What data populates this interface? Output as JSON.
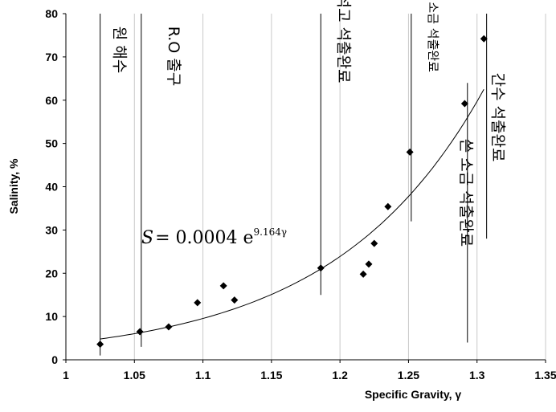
{
  "chart_data": {
    "type": "scatter",
    "xlabel": "Specific Gravity, γ",
    "ylabel": "Salinity, %",
    "xlim": [
      1,
      1.35
    ],
    "ylim": [
      0,
      80
    ],
    "xticks": [
      "1",
      "1.05",
      "1.1",
      "1.15",
      "1.2",
      "1.25",
      "1.3",
      "1.35"
    ],
    "yticks": [
      "0",
      "10",
      "20",
      "30",
      "40",
      "50",
      "60",
      "70",
      "80"
    ],
    "grid": "vertical",
    "points": [
      {
        "x": 1.025,
        "y": 3.6
      },
      {
        "x": 1.054,
        "y": 6.5
      },
      {
        "x": 1.075,
        "y": 7.6
      },
      {
        "x": 1.096,
        "y": 13.2
      },
      {
        "x": 1.115,
        "y": 17.1
      },
      {
        "x": 1.123,
        "y": 13.8
      },
      {
        "x": 1.186,
        "y": 21.2
      },
      {
        "x": 1.217,
        "y": 19.8
      },
      {
        "x": 1.221,
        "y": 22.1
      },
      {
        "x": 1.225,
        "y": 26.9
      },
      {
        "x": 1.235,
        "y": 35.4
      },
      {
        "x": 1.251,
        "y": 48.0
      },
      {
        "x": 1.291,
        "y": 59.2
      },
      {
        "x": 1.305,
        "y": 74.2
      }
    ],
    "trendline": {
      "type": "exponential",
      "a": 0.0004,
      "b": 9.164,
      "x_range": [
        1.025,
        1.305
      ]
    },
    "equation": {
      "lhs": "S",
      "rhs": "= 0.0004 e",
      "exponent": "9.164γ"
    },
    "vertical_markers": [
      {
        "x": 1.025,
        "y_from": 1,
        "y_to": 80,
        "label": "원 해수"
      },
      {
        "x": 1.055,
        "y_from": 3,
        "y_to": 80,
        "label": "R.O 출구"
      },
      {
        "x": 1.186,
        "y_from": 15,
        "y_to": 80,
        "label": "석고 석출완료"
      },
      {
        "x": 1.252,
        "y_from": 32,
        "y_to": 80,
        "label": "좋은 소금 석출완료"
      },
      {
        "x": 1.293,
        "y_from": 4,
        "y_to": 64,
        "label": "쓴 소금 석출완료"
      },
      {
        "x": 1.307,
        "y_from": 28,
        "y_to": 80,
        "label": "간수 석출완료"
      }
    ]
  }
}
